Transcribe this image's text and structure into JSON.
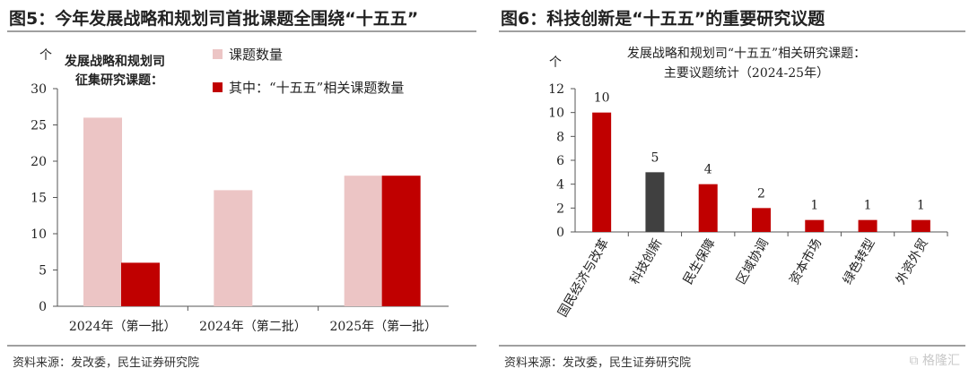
{
  "left": {
    "fig_title": "图5：今年发展战略和规划司首批课题全围绕“十五五”",
    "source": "资料来源：发改委，民生证券研究院",
    "chart_data": {
      "type": "bar",
      "title": "发展战略和规划司征集研究课题：",
      "title_lines": [
        "发展战略和规划司",
        "征集研究课题："
      ],
      "unit": "个",
      "categories": [
        "2024年（第一批）",
        "2024年（第二批）",
        "2025年（第一批）"
      ],
      "series": [
        {
          "name": "课题数量",
          "values": [
            26,
            16,
            18
          ],
          "color": "#ecc5c5"
        },
        {
          "name": "其中：“十五五”相关课题数量",
          "values": [
            6,
            0,
            18
          ],
          "color": "#c00000"
        }
      ],
      "ylim": [
        0,
        30
      ],
      "yticks": [
        "0",
        "5",
        "10",
        "15",
        "20",
        "25",
        "30"
      ],
      "legend_position": "top-right",
      "grid": false
    }
  },
  "right": {
    "fig_title": "图6：科技创新是“十五五”的重要研究议题",
    "source": "资料来源：发改委，民生证券研究院",
    "watermark": "格隆汇",
    "chart_data": {
      "type": "bar",
      "title": "发展战略和规划司“十五五”相关研究课题：主要议题统计（2024-25年）",
      "title_lines": [
        "发展战略和规划司“十五五”相关研究课题：",
        "主要议题统计（2024-25年）"
      ],
      "unit": "个",
      "categories": [
        "国民经济与改革",
        "科技创新",
        "民生保障",
        "区域协调",
        "资本市场",
        "绿色转型",
        "外资外贸"
      ],
      "values": [
        10,
        5,
        4,
        2,
        1,
        1,
        1
      ],
      "data_labels": [
        "10",
        "5",
        "4",
        "2",
        "1",
        "1",
        "1"
      ],
      "colors": [
        "#c00000",
        "#404040",
        "#c00000",
        "#c00000",
        "#c00000",
        "#c00000",
        "#c00000"
      ],
      "ylim": [
        0,
        12
      ],
      "yticks": [
        "0",
        "2",
        "4",
        "6",
        "8",
        "10",
        "12"
      ],
      "grid": false
    }
  }
}
